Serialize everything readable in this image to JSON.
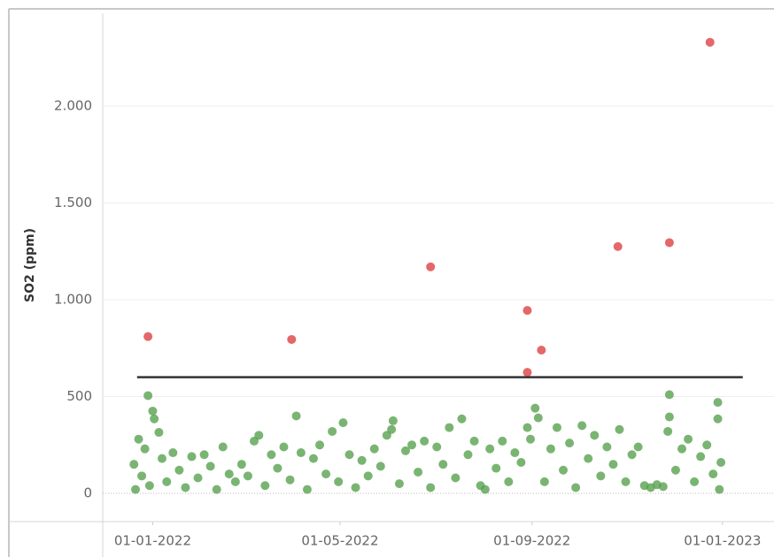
{
  "chart_data": {
    "type": "scatter",
    "y_label": "SO2 (ppm)",
    "xlim": [
      "2021-11-30",
      "2023-02-03"
    ],
    "ylim": [
      -146,
      2480
    ],
    "xticks": [
      {
        "value": "2022-01-01",
        "label": "01-01-2022"
      },
      {
        "value": "2022-05-01",
        "label": "01-05-2022"
      },
      {
        "value": "2022-09-01",
        "label": "01-09-2022"
      },
      {
        "value": "2023-01-01",
        "label": "01-01-2023"
      }
    ],
    "yticks": [
      0,
      500,
      {
        "value": 1000,
        "label": "1.000"
      },
      {
        "value": 1500,
        "label": "1.500"
      },
      {
        "value": 2000,
        "label": "2.000"
      }
    ],
    "grid": true,
    "reference_line": {
      "value": 600,
      "x": [
        "2021-12-22",
        "2023-01-14"
      ],
      "color": "#333333"
    },
    "series": [
      {
        "color": "#59a14f",
        "x": [
          "2021-12-20",
          "2021-12-21",
          "2021-12-23",
          "2021-12-25",
          "2021-12-27",
          "2021-12-29",
          "2021-12-30",
          "2022-01-01",
          "2022-01-02",
          "2022-01-05",
          "2022-01-07",
          "2022-01-10",
          "2022-01-14",
          "2022-01-18",
          "2022-01-22",
          "2022-01-26",
          "2022-01-30",
          "2022-02-03",
          "2022-02-07",
          "2022-02-11",
          "2022-02-15",
          "2022-02-19",
          "2022-02-23",
          "2022-02-27",
          "2022-03-03",
          "2022-03-07",
          "2022-03-10",
          "2022-03-14",
          "2022-03-18",
          "2022-03-22",
          "2022-03-26",
          "2022-03-30",
          "2022-04-03",
          "2022-04-06",
          "2022-04-10",
          "2022-04-14",
          "2022-04-18",
          "2022-04-22",
          "2022-04-26",
          "2022-04-30",
          "2022-05-03",
          "2022-05-07",
          "2022-05-11",
          "2022-05-15",
          "2022-05-19",
          "2022-05-23",
          "2022-05-27",
          "2022-05-31",
          "2022-06-03",
          "2022-06-04",
          "2022-06-08",
          "2022-06-12",
          "2022-06-16",
          "2022-06-20",
          "2022-06-24",
          "2022-06-28",
          "2022-07-02",
          "2022-07-06",
          "2022-07-10",
          "2022-07-14",
          "2022-07-18",
          "2022-07-22",
          "2022-07-26",
          "2022-07-30",
          "2022-08-02",
          "2022-08-05",
          "2022-08-09",
          "2022-08-13",
          "2022-08-17",
          "2022-08-21",
          "2022-08-25",
          "2022-08-29",
          "2022-08-31",
          "2022-09-03",
          "2022-09-05",
          "2022-09-09",
          "2022-09-13",
          "2022-09-17",
          "2022-09-21",
          "2022-09-25",
          "2022-09-29",
          "2022-10-03",
          "2022-10-07",
          "2022-10-11",
          "2022-10-15",
          "2022-10-19",
          "2022-10-23",
          "2022-10-27",
          "2022-10-31",
          "2022-11-04",
          "2022-11-08",
          "2022-11-12",
          "2022-11-16",
          "2022-11-20",
          "2022-11-24",
          "2022-11-28",
          "2022-11-28",
          "2022-11-27",
          "2022-12-02",
          "2022-12-06",
          "2022-12-10",
          "2022-12-14",
          "2022-12-18",
          "2022-12-22",
          "2022-12-26",
          "2022-12-29",
          "2022-12-29",
          "2022-12-30",
          "2022-12-31"
        ],
        "values": [
          150,
          20,
          280,
          90,
          230,
          505,
          40,
          425,
          385,
          315,
          180,
          60,
          210,
          120,
          30,
          190,
          80,
          200,
          140,
          20,
          240,
          100,
          60,
          150,
          90,
          270,
          300,
          40,
          200,
          130,
          240,
          70,
          400,
          210,
          20,
          180,
          250,
          100,
          320,
          60,
          365,
          200,
          30,
          170,
          90,
          230,
          140,
          300,
          330,
          375,
          50,
          220,
          250,
          110,
          270,
          30,
          240,
          150,
          340,
          80,
          385,
          200,
          270,
          40,
          20,
          230,
          130,
          270,
          60,
          210,
          160,
          340,
          280,
          440,
          390,
          60,
          230,
          340,
          120,
          260,
          30,
          350,
          180,
          300,
          90,
          240,
          150,
          330,
          60,
          200,
          240,
          40,
          30,
          45,
          35,
          510,
          395,
          320,
          120,
          230,
          280,
          60,
          190,
          250,
          100,
          470,
          385,
          20,
          160
        ]
      },
      {
        "color": "#e15759",
        "x": [
          "2021-12-29",
          "2022-03-31",
          "2022-06-28",
          "2022-08-29",
          "2022-09-07",
          "2022-08-29",
          "2022-10-26",
          "2022-11-28",
          "2022-12-24"
        ],
        "values": [
          810,
          795,
          1170,
          945,
          740,
          625,
          1275,
          1295,
          2330
        ]
      }
    ]
  }
}
